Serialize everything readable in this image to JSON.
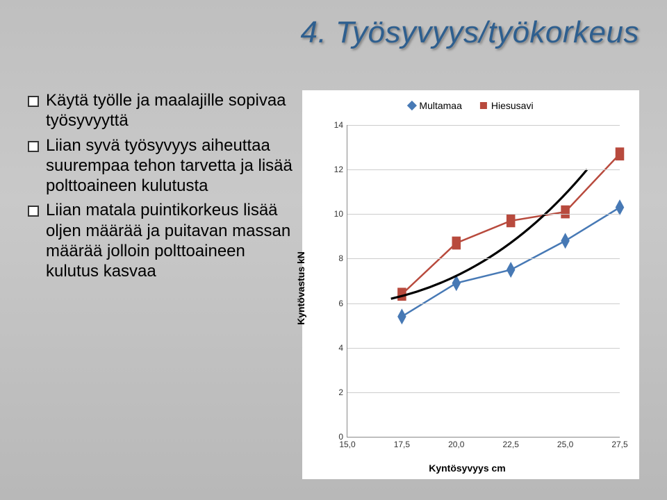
{
  "title": "4. Työsyvyys/työkorkeus",
  "bullets": [
    "Käytä työlle ja maalajille sopivaa työsyvyyttä",
    "Liian syvä työsyvyys aiheuttaa suurempaa tehon tarvetta ja lisää polttoaineen kulutusta",
    "Liian matala puintikorkeus lisää oljen määrää ja puitavan massan määrää jolloin polttoaineen kulutus kasvaa"
  ],
  "chart": {
    "type": "line",
    "ylabel": "Kyntövastus kN",
    "xlabel": "Kyntösyvyys cm",
    "ylim": [
      0,
      14
    ],
    "ytick_step": 2,
    "xlim": [
      15.0,
      27.5
    ],
    "xtick_step": 2.5,
    "xticks_labels": [
      "15,0",
      "17,5",
      "20,0",
      "22,5",
      "25,0",
      "27,5"
    ],
    "grid_color": "#cccccc",
    "background_color": "#ffffff",
    "label_fontsize": 14,
    "tick_fontsize": 12,
    "series": [
      {
        "name": "Multamaa",
        "color": "#4779b5",
        "marker": "diamond",
        "marker_size": 9,
        "line_width": 2.5,
        "x": [
          17.5,
          20.0,
          22.5,
          25.0,
          27.5
        ],
        "y": [
          5.4,
          6.9,
          7.5,
          8.8,
          10.3
        ]
      },
      {
        "name": "Hiesusavi",
        "color": "#b84a3d",
        "marker": "square",
        "marker_size": 9,
        "line_width": 2.5,
        "x": [
          17.5,
          20.0,
          22.5,
          25.0,
          27.5
        ],
        "y": [
          6.4,
          8.7,
          9.7,
          10.1,
          12.7
        ]
      }
    ],
    "trendline": {
      "color": "#000000",
      "width": 3.2
    }
  }
}
